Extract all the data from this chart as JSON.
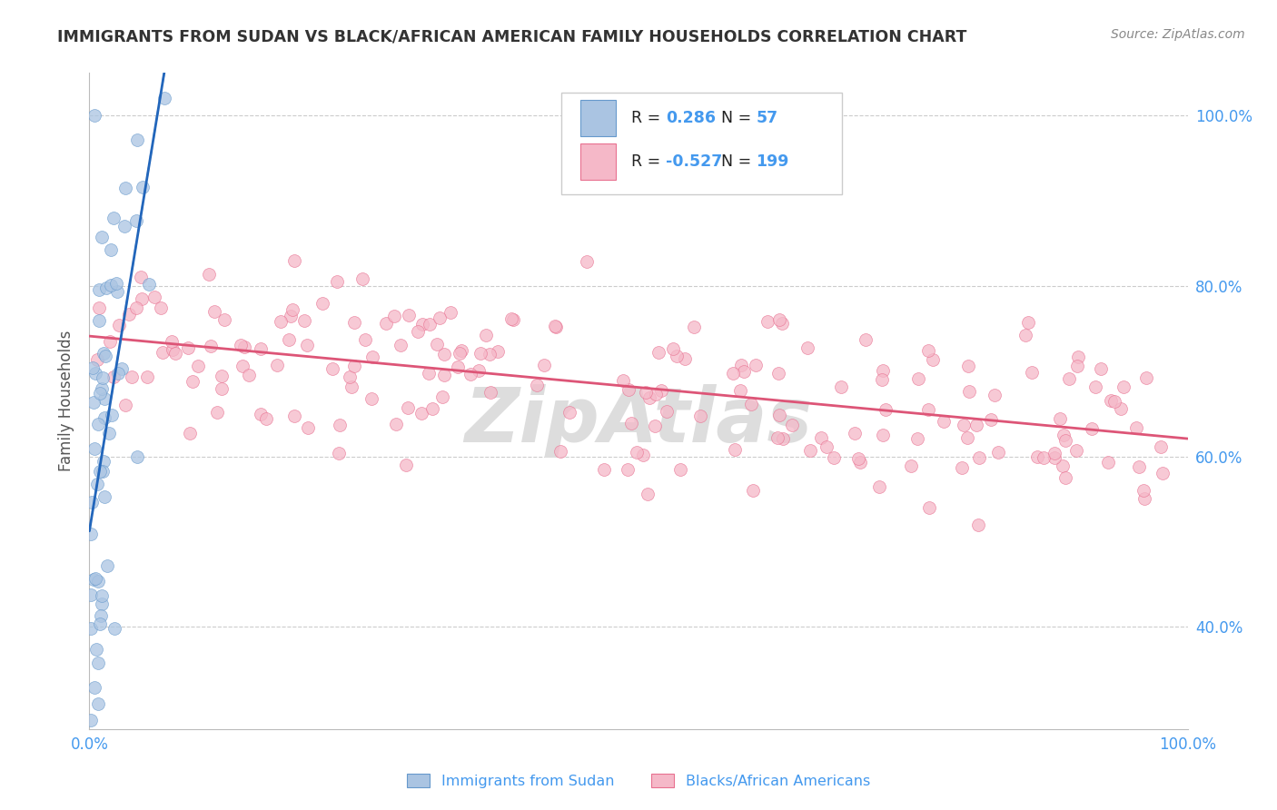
{
  "title": "IMMIGRANTS FROM SUDAN VS BLACK/AFRICAN AMERICAN FAMILY HOUSEHOLDS CORRELATION CHART",
  "source": "Source: ZipAtlas.com",
  "ylabel": "Family Households",
  "xlim": [
    0.0,
    1.0
  ],
  "ylim": [
    0.28,
    1.05
  ],
  "ytick_vals": [
    0.4,
    0.6,
    0.8,
    1.0
  ],
  "ytick_labels": [
    "40.0%",
    "60.0%",
    "80.0%",
    "100.0%"
  ],
  "xtick_vals": [
    0.0,
    1.0
  ],
  "xtick_labels": [
    "0.0%",
    "100.0%"
  ],
  "blue_color": "#aac4e2",
  "blue_edge_color": "#6699cc",
  "pink_color": "#f5b8c8",
  "pink_edge_color": "#e87090",
  "blue_line_color": "#2266bb",
  "pink_line_color": "#dd5577",
  "axis_color": "#bbbbbb",
  "grid_color": "#cccccc",
  "tick_label_color": "#4499ee",
  "title_color": "#333333",
  "source_color": "#888888",
  "ylabel_color": "#555555",
  "legend_text_black": "#222222",
  "legend_text_blue": "#4499ee",
  "watermark_color": "#dddddd",
  "blue_r": 0.286,
  "blue_n": 57,
  "pink_r": -0.527,
  "pink_n": 199,
  "scatter_size": 100
}
